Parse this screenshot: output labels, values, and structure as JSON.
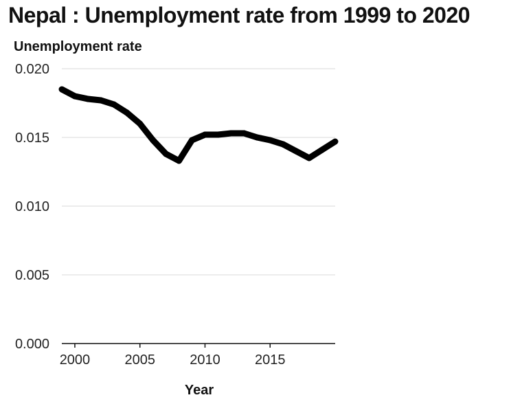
{
  "chart_data": {
    "type": "line",
    "title": "Nepal : Unemployment rate from 1999 to 2020",
    "xlabel": "Year",
    "ylabel": "Unemployment rate",
    "x": [
      1999,
      2000,
      2001,
      2002,
      2003,
      2004,
      2005,
      2006,
      2007,
      2008,
      2009,
      2010,
      2011,
      2012,
      2013,
      2014,
      2015,
      2016,
      2017,
      2018,
      2019,
      2020
    ],
    "series": [
      {
        "values": [
          0.0185,
          0.018,
          0.0178,
          0.0177,
          0.0174,
          0.0168,
          0.016,
          0.0148,
          0.0138,
          0.0133,
          0.0148,
          0.0152,
          0.0152,
          0.0153,
          0.0153,
          0.015,
          0.0148,
          0.0145,
          0.014,
          0.0135,
          0.0141,
          0.0147
        ],
        "color": "#000000"
      }
    ],
    "xlim": [
      1999,
      2020
    ],
    "ylim": [
      0,
      0.02
    ],
    "xticks": [
      2000,
      2005,
      2010,
      2015
    ],
    "xtick_labels": [
      "2000",
      "2005",
      "2010",
      "2015"
    ],
    "yticks": [
      0,
      0.005,
      0.01,
      0.015,
      0.02
    ],
    "ytick_labels": [
      "0.000",
      "0.005",
      "0.010",
      "0.015",
      "0.020"
    ],
    "grid": true,
    "legend": false
  }
}
